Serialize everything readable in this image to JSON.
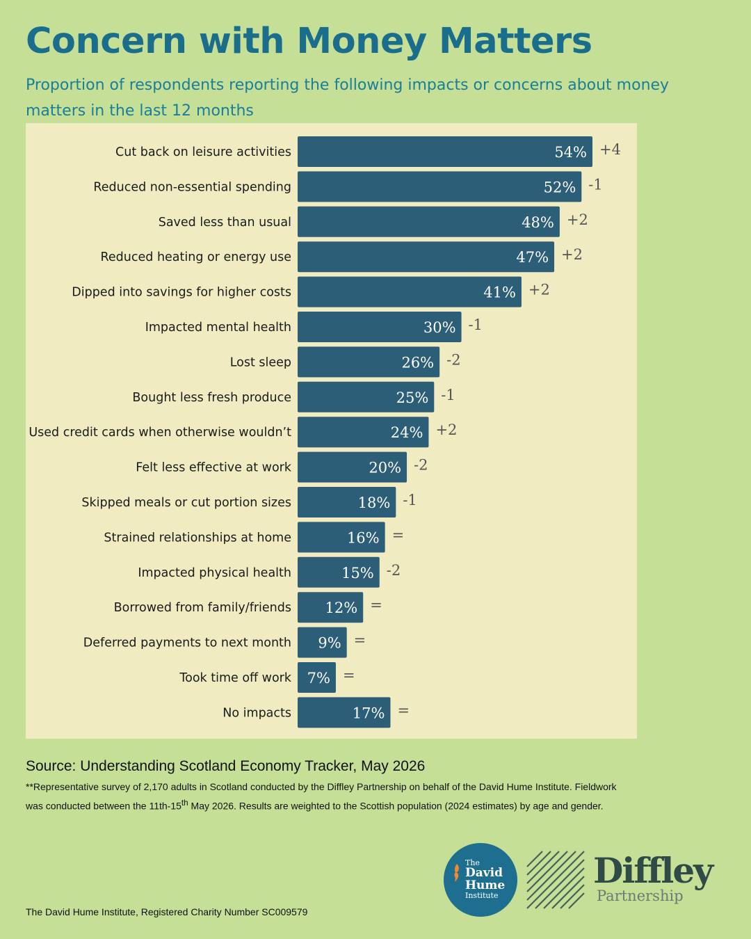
{
  "title": "Concern with Money Matters",
  "subtitle": "Proportion of respondents reporting the following impacts or concerns about money matters in the last 12 months",
  "chart_data": {
    "type": "bar",
    "orientation": "horizontal",
    "categories": [
      "Cut back on leisure activities",
      "Reduced non-essential spending",
      "Saved less than usual",
      "Reduced heating or energy use",
      "Dipped into savings for higher costs",
      "Impacted mental health",
      "Lost sleep",
      "Bought less fresh produce",
      "Used credit cards when otherwise wouldn’t",
      "Felt less effective at work",
      "Skipped meals or cut portion sizes",
      "Strained relationships at home",
      "Impacted physical health",
      "Borrowed from family/friends",
      "Deferred payments to next month",
      "Took time off work",
      "No impacts"
    ],
    "values": [
      54,
      52,
      48,
      47,
      41,
      30,
      26,
      25,
      24,
      20,
      18,
      16,
      15,
      12,
      9,
      7,
      17
    ],
    "value_labels": [
      "54%",
      "52%",
      "48%",
      "47%",
      "41%",
      "30%",
      "26%",
      "25%",
      "24%",
      "20%",
      "18%",
      "16%",
      "15%",
      "12%",
      "9%",
      "7%",
      "17%"
    ],
    "changes": [
      "+4",
      "-1",
      "+2",
      "+2",
      "+2",
      "-1",
      "-2",
      "-1",
      "+2",
      "-2",
      "-1",
      "=",
      "-2",
      "=",
      "=",
      "=",
      "="
    ],
    "title": "",
    "xlabel": "",
    "ylabel": "",
    "xlim": [
      0,
      54
    ],
    "grid": false,
    "legend": "none",
    "bar_color": "#2c5e77"
  },
  "source": "Source: Understanding Scotland Economy Tracker, May 2026",
  "note": {
    "before_sup": "**Representative survey of 2,170 adults in Scotland conducted by the Diffley Partnership on behalf of the David Hume Institute. Fieldwork was conducted between the 11th-15",
    "sup": "th",
    "after_sup": " May 2026. Results are weighted to the Scottish population (2024 estimates) by age and gender."
  },
  "charity": "The David Hume Institute, Registered Charity Number SC009579",
  "logos": {
    "dhi_the": "The",
    "dhi_name_1": "David",
    "dhi_name_2": "Hume",
    "dhi_institute": "Institute",
    "diffley_name": "Diffley",
    "diffley_sub": "Partnership"
  },
  "colors": {
    "background": "#c5df96",
    "panel": "#f0ebc0",
    "title": "#1a6e8c",
    "subtitle": "#1a7e99",
    "bar": "#2c5e77"
  }
}
